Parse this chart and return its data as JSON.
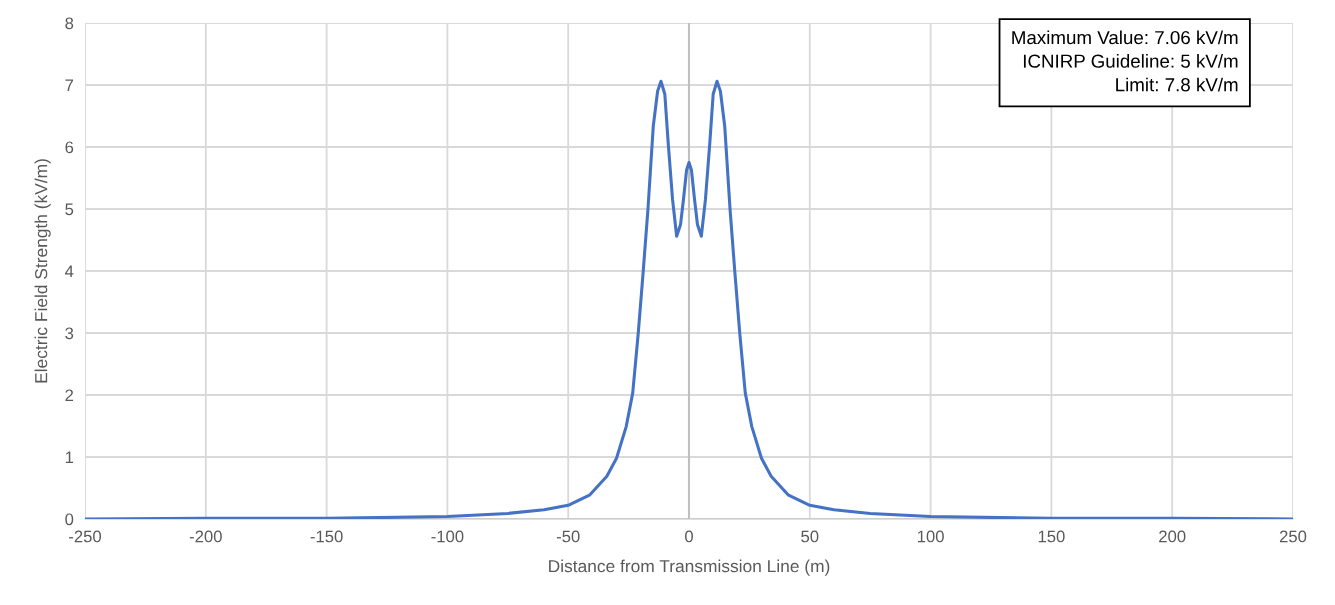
{
  "chart_data": {
    "type": "line",
    "xlabel": "Distance from Transmission Line (m)",
    "ylabel": "Electric Field Strength (kV/m)",
    "x": [
      -250,
      -200,
      -150,
      -100,
      -75,
      -60,
      -50,
      -41,
      -34,
      -30,
      -26,
      -23.3,
      -21,
      -19,
      -17,
      -14.8,
      -13,
      -11.6,
      -10,
      -8.6,
      -6.8,
      -5.1,
      -3.5,
      -2.3,
      -1,
      0,
      1,
      2.3,
      3.5,
      5.1,
      6.8,
      8.6,
      10,
      11.6,
      13,
      14.8,
      17,
      19,
      21,
      23.3,
      26,
      30,
      34,
      41,
      50,
      60,
      75,
      100,
      150,
      200,
      250
    ],
    "series": [
      {
        "color": "#4472c4",
        "values": [
          0,
          0.01,
          0.01,
          0.04,
          0.09,
          0.15,
          0.22,
          0.39,
          0.69,
          0.98,
          1.49,
          2.03,
          3.0,
          3.97,
          4.99,
          6.33,
          6.9,
          7.06,
          6.85,
          6.06,
          5.15,
          4.56,
          4.75,
          5.15,
          5.63,
          5.75,
          5.63,
          5.15,
          4.75,
          4.56,
          5.15,
          6.06,
          6.85,
          7.06,
          6.9,
          6.33,
          4.99,
          3.97,
          3.0,
          2.03,
          1.49,
          0.98,
          0.69,
          0.39,
          0.22,
          0.15,
          0.09,
          0.04,
          0.01,
          0.01,
          0
        ]
      }
    ],
    "xlim": [
      -250,
      250
    ],
    "xticks": [
      -250,
      -200,
      -150,
      -100,
      -50,
      0,
      50,
      100,
      150,
      200,
      250
    ],
    "ylim": [
      0,
      8
    ],
    "yticks": [
      0,
      1,
      2,
      3,
      4,
      5,
      6,
      7,
      8
    ],
    "grid": true,
    "marker": "none",
    "line_style": "solid",
    "ref_lines": [
      {
        "axis": "x",
        "value": 0,
        "color": "#bfbfbf"
      }
    ],
    "annotations": [
      "Maximum Value: 7.06 kV/m\nICNIRP Guideline: 5 kV/m\nLimit: 7.8 kV/m"
    ]
  }
}
